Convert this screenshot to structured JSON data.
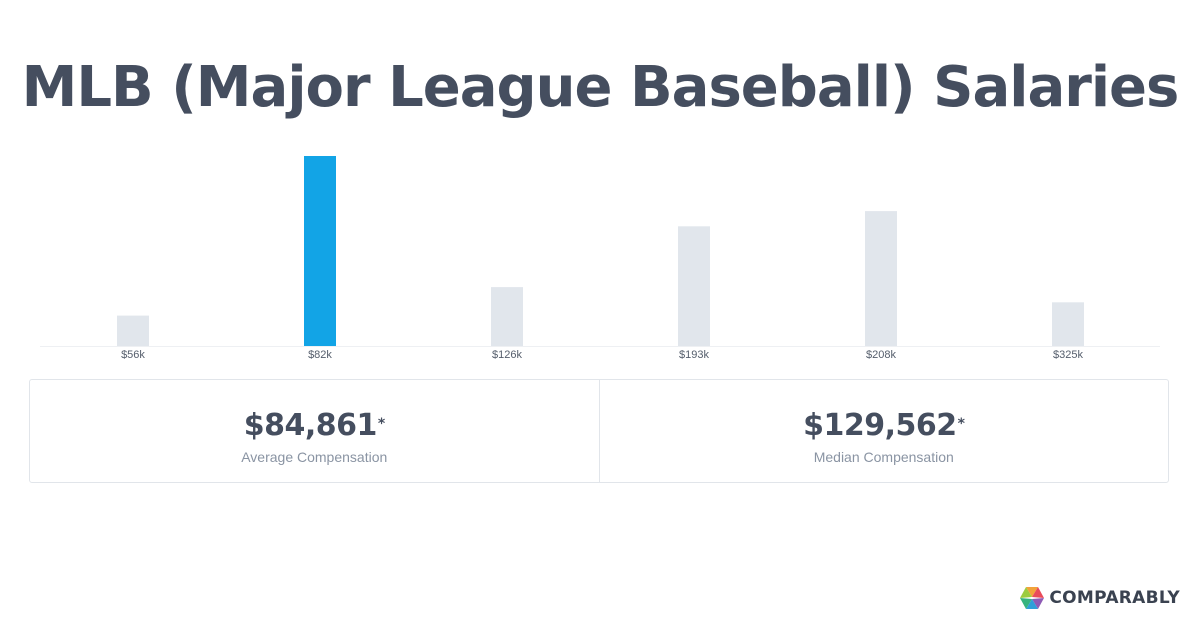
{
  "title": "MLB (Major League Baseball) Salaries",
  "chart_data": {
    "type": "bar",
    "categories": [
      "$56k",
      "$82k",
      "$126k",
      "$193k",
      "$208k",
      "$325k"
    ],
    "values": [
      16,
      100,
      31,
      63,
      71,
      23
    ],
    "highlight_index": 1,
    "ylim": [
      0,
      100
    ],
    "grid": false,
    "colors": {
      "bar": "#e1e6ec",
      "highlight": "#12a4e6",
      "tick_text": "#555e6c",
      "baseline": "#eef0f3"
    }
  },
  "stats": [
    {
      "value": "$84,861",
      "mark": "*",
      "label": "Average Compensation"
    },
    {
      "value": "$129,562",
      "mark": "*",
      "label": "Median Compensation"
    }
  ],
  "brand": {
    "name": "COMPARABLY",
    "icon": "comparably-logo-icon"
  }
}
